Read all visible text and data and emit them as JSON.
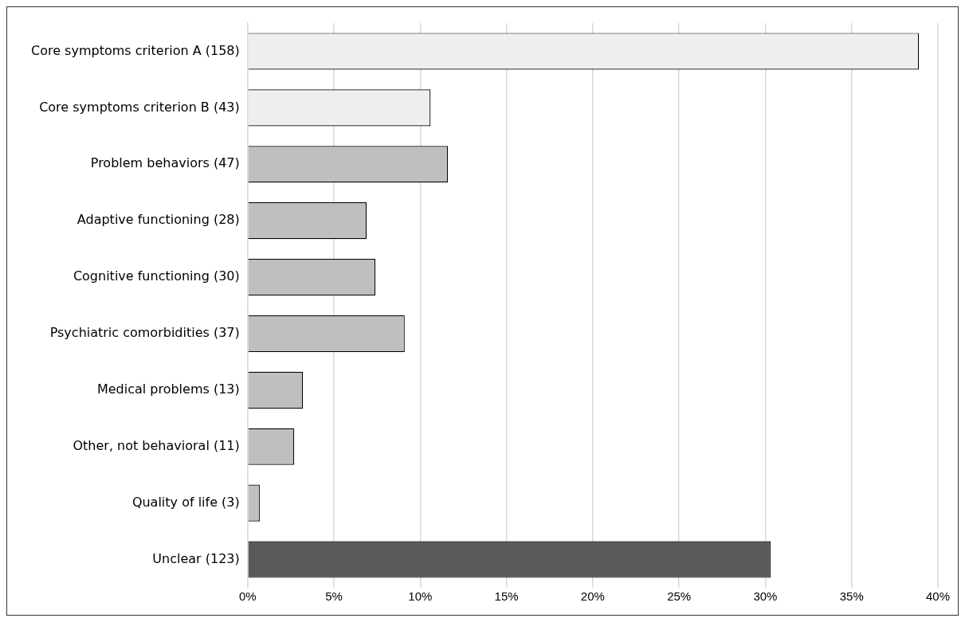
{
  "chart_data": {
    "type": "bar",
    "orientation": "horizontal",
    "categories": [
      "Core symptoms criterion A (158)",
      "Core symptoms criterion B (43)",
      "Problem behaviors (47)",
      "Adaptive functioning (28)",
      "Cognitive functioning (30)",
      "Psychiatric comorbidities (37)",
      "Medical problems (13)",
      "Other, not behavioral (11)",
      "Quality of life (3)",
      "Unclear (123)"
    ],
    "values": [
      38.9,
      10.6,
      11.6,
      6.9,
      7.4,
      9.1,
      3.2,
      2.7,
      0.7,
      30.3
    ],
    "colors": [
      "#efefef",
      "#efefef",
      "#bfbfbf",
      "#bfbfbf",
      "#bfbfbf",
      "#bfbfbf",
      "#bfbfbf",
      "#bfbfbf",
      "#bfbfbf",
      "#595959"
    ],
    "xlim": [
      0,
      40
    ],
    "xticks": [
      {
        "value": 0,
        "label": "0%"
      },
      {
        "value": 5,
        "label": "5%"
      },
      {
        "value": 10,
        "label": "10%"
      },
      {
        "value": 15,
        "label": "15%"
      },
      {
        "value": 20,
        "label": "20%"
      },
      {
        "value": 25,
        "label": "25%"
      },
      {
        "value": 30,
        "label": "30%"
      },
      {
        "value": 35,
        "label": "35%"
      },
      {
        "value": 40,
        "label": "40%"
      }
    ],
    "grid": "x",
    "legend": false
  }
}
